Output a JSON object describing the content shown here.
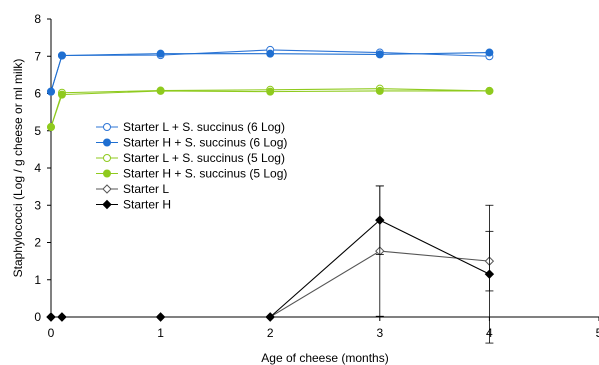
{
  "chart_data": {
    "type": "line",
    "title": "",
    "xlabel": "Age of cheese (months)",
    "ylabel": "Staphylococci (Log / g cheese or ml milk)",
    "xlim": [
      0,
      5
    ],
    "ylim": [
      0,
      8
    ],
    "xticks": [
      "0",
      "1",
      "2",
      "3",
      "4",
      "5"
    ],
    "yticks": [
      "0",
      "1",
      "2",
      "3",
      "4",
      "5",
      "6",
      "7",
      "8"
    ],
    "grid": false,
    "legend_position": "left",
    "series": [
      {
        "name": "Starter L + S. succinus (6 Log)",
        "color": "#2e75d6",
        "marker": "circle",
        "filled": false,
        "x": [
          0,
          0.1,
          1,
          2,
          3,
          4
        ],
        "y": [
          6.05,
          7.02,
          7.03,
          7.17,
          7.1,
          7.0
        ]
      },
      {
        "name": "Starter H + S. succinus (6 Log)",
        "color": "#1f6fd1",
        "marker": "circle",
        "filled": true,
        "x": [
          0,
          0.1,
          1,
          2,
          3,
          4
        ],
        "y": [
          6.05,
          7.02,
          7.07,
          7.07,
          7.05,
          7.1
        ]
      },
      {
        "name": "Starter L + S. succinus (5 Log)",
        "color": "#8fca1e",
        "marker": "circle",
        "filled": false,
        "x": [
          0,
          0.1,
          1,
          2,
          3,
          4
        ],
        "y": [
          5.1,
          6.02,
          6.08,
          6.1,
          6.13,
          6.07
        ]
      },
      {
        "name": "Starter H + S. succinus (5 Log)",
        "color": "#8fca1e",
        "marker": "circle",
        "filled": true,
        "x": [
          0,
          0.1,
          1,
          2,
          3,
          4
        ],
        "y": [
          5.1,
          5.97,
          6.07,
          6.05,
          6.07,
          6.07
        ]
      },
      {
        "name": "Starter L",
        "color": "#555555",
        "marker": "diamond",
        "filled": false,
        "x": [
          0,
          0.1,
          1,
          2,
          3,
          4
        ],
        "y": [
          0,
          0,
          0,
          0,
          1.77,
          1.5
        ],
        "error": [
          0,
          0,
          0,
          0,
          1.75,
          0.8
        ]
      },
      {
        "name": "Starter H",
        "color": "#000000",
        "marker": "diamond",
        "filled": true,
        "x": [
          0,
          0.1,
          1,
          2,
          3,
          4
        ],
        "y": [
          0,
          0,
          0,
          0,
          2.6,
          1.15
        ],
        "error": [
          0,
          0,
          0,
          0,
          0.92,
          1.85
        ]
      }
    ]
  }
}
